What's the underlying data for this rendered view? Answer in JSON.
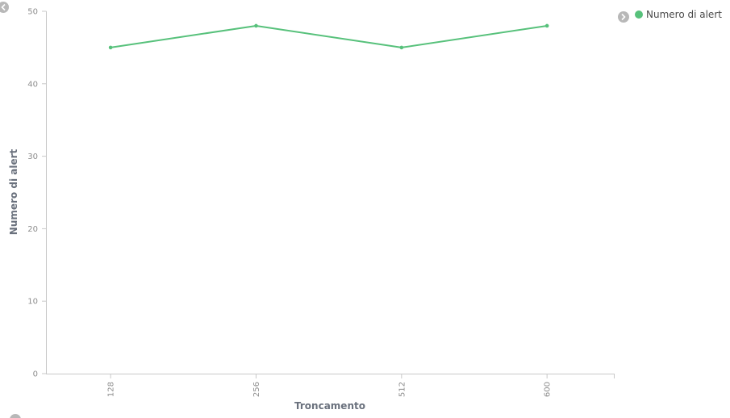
{
  "chart_data": {
    "type": "line",
    "categories": [
      "128",
      "256",
      "512",
      "600"
    ],
    "series": [
      {
        "name": "Numero di alert",
        "values": [
          45,
          48,
          45,
          48
        ],
        "color": "#57c17b"
      }
    ],
    "xlabel": "Troncamento",
    "ylabel": "Numero di alert",
    "ylim": [
      0,
      50
    ],
    "yticks": [
      0,
      10,
      20,
      30,
      40,
      50
    ],
    "grid": false,
    "legend_position": "top-right"
  },
  "controls": {
    "legend_toggle_icon": "chevron-right-icon",
    "nav_prev_icon": "chevron-left-icon"
  },
  "colors": {
    "axis": "#c8c8c8",
    "tick_text": "#8d8d8d",
    "axis_title": "#6a717d",
    "button_bg": "#b8b8b8"
  }
}
